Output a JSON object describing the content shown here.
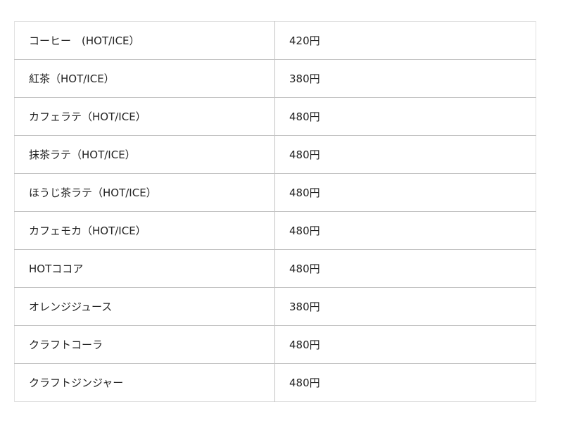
{
  "menu": [
    {
      "name": "コーヒー　(HOT/ICE）",
      "price": "420円"
    },
    {
      "name": "紅茶（HOT/ICE）",
      "price": "380円"
    },
    {
      "name": "カフェラテ（HOT/ICE）",
      "price": "480円"
    },
    {
      "name": "抹茶ラテ（HOT/ICE）",
      "price": "480円"
    },
    {
      "name": "ほうじ茶ラテ（HOT/ICE）",
      "price": "480円"
    },
    {
      "name": "カフェモカ（HOT/ICE）",
      "price": "480円"
    },
    {
      "name": "HOTココア",
      "price": "480円"
    },
    {
      "name": "オレンジジュース",
      "price": "380円"
    },
    {
      "name": "クラフトコーラ",
      "price": "480円"
    },
    {
      "name": "クラフトジンジャー",
      "price": "480円"
    }
  ]
}
